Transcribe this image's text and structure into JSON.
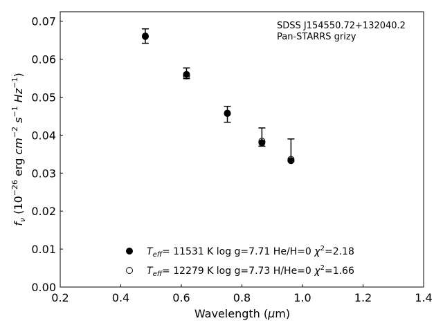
{
  "chart_data": {
    "type": "scatter",
    "xlabel_text": "Wavelength (",
    "xlabel_mu": "μ",
    "xlabel_unit": "m)",
    "ylabel": "f_ν (10^−26 erg cm^−2 s^−1 Hz^−1)",
    "annotation": [
      "SDSS J154550.72+132040.2",
      "Pan-STARRS grizy"
    ],
    "xlim": [
      0.2,
      1.4
    ],
    "ylim": [
      0.0,
      0.0725
    ],
    "xticks": [
      "0.2",
      "0.4",
      "0.6",
      "0.8",
      "1.0",
      "1.2",
      "1.4"
    ],
    "yticks": [
      "0.00",
      "0.01",
      "0.02",
      "0.03",
      "0.04",
      "0.05",
      "0.06",
      "0.07"
    ],
    "observed": {
      "x": [
        0.481,
        0.617,
        0.752,
        0.866,
        0.962
      ],
      "y": [
        0.0661,
        0.0563,
        0.0455,
        0.0395,
        0.0361
      ],
      "yerr": [
        0.0019,
        0.0014,
        0.0021,
        0.0024,
        0.0029
      ]
    },
    "series": [
      {
        "name": "Teff= 11531 K  log g=7.71  He/H=0  χ2=2.18",
        "marker": "filled",
        "x": [
          0.481,
          0.617,
          0.752,
          0.866,
          0.962
        ],
        "y": [
          0.0661,
          0.056,
          0.0458,
          0.038,
          0.0333
        ]
      },
      {
        "name": "Teff= 12279 K  log g=7.73  H/He=0  χ2=1.66",
        "marker": "open",
        "x": [
          0.481,
          0.617,
          0.752,
          0.866,
          0.962
        ],
        "y": [
          0.066,
          0.0556,
          0.0457,
          0.0384,
          0.0336
        ]
      }
    ],
    "legend": [
      {
        "marker": "filled",
        "teff": "11531",
        "logg": "7.71",
        "comp": "He/H=0",
        "chi2": "2.18"
      },
      {
        "marker": "open",
        "teff": "12279",
        "logg": "7.73",
        "comp": "H/He=0",
        "chi2": "1.66"
      }
    ],
    "legend_placement": "lower-center",
    "grid": false
  }
}
